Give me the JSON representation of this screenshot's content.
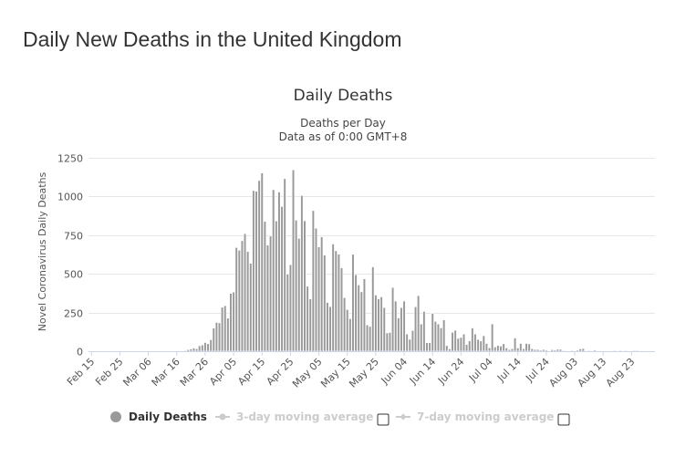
{
  "page": {
    "heading": "Daily New Deaths in the United Kingdom"
  },
  "chart_data": {
    "type": "bar",
    "title": "Daily Deaths",
    "subtitle_lines": [
      "Deaths per Day",
      "Data as of 0:00 GMT+8"
    ],
    "ylabel": "Novel Coronavirus Daily Deaths",
    "xlabel": "",
    "ylim": [
      0,
      1250
    ],
    "yticks": [
      0,
      250,
      500,
      750,
      1000,
      1250
    ],
    "grid": true,
    "legend_position": "bottom",
    "x_tick_labels": [
      "Feb 15",
      "Feb 25",
      "Mar 06",
      "Mar 16",
      "Mar 26",
      "Apr 05",
      "Apr 15",
      "Apr 25",
      "May 05",
      "May 15",
      "May 25",
      "Jun 04",
      "Jun 14",
      "Jun 24",
      "Jul 04",
      "Jul 14",
      "Jul 24",
      "Aug 03",
      "Aug 13",
      "Aug 23"
    ],
    "x_start": "Feb 15",
    "bar_color": "#999999",
    "series": [
      {
        "name": "Daily Deaths",
        "values": [
          0,
          0,
          0,
          0,
          0,
          0,
          0,
          0,
          0,
          0,
          0,
          0,
          0,
          0,
          0,
          0,
          0,
          0,
          0,
          0,
          0,
          0,
          0,
          0,
          0,
          0,
          0,
          0,
          0,
          0,
          1,
          2,
          0,
          4,
          10,
          14,
          20,
          16,
          35,
          40,
          56,
          48,
          74,
          149,
          186,
          183,
          284,
          294,
          214,
          374,
          382,
          670,
          652,
          714,
          760,
          644,
          568,
          1038,
          1034,
          1103,
          1152,
          839,
          686,
          744,
          1044,
          842,
          1029,
          935,
          1115,
          498,
          559,
          1172,
          847,
          729,
          1006,
          843,
          420,
          338,
          909,
          795,
          674,
          739,
          621,
          315,
          288,
          693,
          649,
          627,
          539,
          346,
          269,
          210,
          626,
          494,
          428,
          384,
          468,
          170,
          160,
          545,
          363,
          338,
          351,
          282,
          118,
          121,
          412,
          324,
          215,
          282,
          324,
          111,
          77,
          134,
          287,
          359,
          176,
          257,
          55,
          55,
          244,
          193,
          176,
          151,
          202,
          36,
          15,
          122,
          135,
          83,
          89,
          111,
          43,
          67,
          150,
          111,
          76,
          66,
          100,
          50,
          22,
          176,
          27,
          37,
          33,
          48,
          21,
          10,
          16,
          85,
          21,
          50,
          16,
          50,
          47,
          16,
          11,
          11,
          7,
          11,
          7,
          1,
          10,
          8,
          12,
          12,
          3,
          1,
          1,
          5,
          1,
          7,
          15,
          17,
          1,
          3,
          1,
          7,
          1,
          2,
          2,
          2,
          1,
          2,
          5,
          2,
          3,
          2,
          3,
          1,
          1,
          5,
          5,
          2,
          2,
          1,
          1,
          2
        ]
      }
    ],
    "legend": [
      {
        "label": "Daily Deaths",
        "enabled": true,
        "color": "#999999"
      },
      {
        "label": "3-day moving average",
        "enabled": false,
        "color": "#cccccc"
      },
      {
        "label": "7-day moving average",
        "enabled": false,
        "color": "#cccccc"
      }
    ]
  }
}
